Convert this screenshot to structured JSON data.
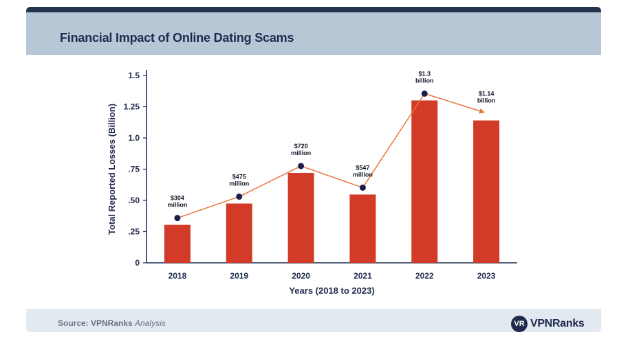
{
  "header": {
    "title": "Financial Impact of Online Dating Scams"
  },
  "footer": {
    "source_prefix": "Source: VPNRanks",
    "source_suffix": "Analysis",
    "logo_mark": "VR",
    "logo_text": "VPNRanks"
  },
  "colors": {
    "header_bg": "#b8c7d6",
    "topbar": "#24344e",
    "bar": "#d13b27",
    "line": "#e8743c",
    "marker": "#1a1f4d",
    "footer_bg": "#e3e9f0"
  },
  "chart_data": {
    "type": "bar",
    "categories": [
      "2018",
      "2019",
      "2020",
      "2021",
      "2022",
      "2023"
    ],
    "values": [
      0.304,
      0.475,
      0.72,
      0.547,
      1.3,
      1.14
    ],
    "data_labels": [
      [
        "$304",
        "million"
      ],
      [
        "$475",
        "million"
      ],
      [
        "$720",
        "million"
      ],
      [
        "$547",
        "million"
      ],
      [
        "$1.3",
        "billion"
      ],
      [
        "$1.14",
        "billion"
      ]
    ],
    "overlay": {
      "type": "line",
      "values": [
        0.304,
        0.475,
        0.72,
        0.547,
        1.3,
        1.14
      ],
      "arrow_at_end": true
    },
    "yticks": [
      {
        "value": 0,
        "label": "0"
      },
      {
        "value": 0.25,
        "label": ".25"
      },
      {
        "value": 0.5,
        "label": ".50"
      },
      {
        "value": 0.75,
        "label": ".75"
      },
      {
        "value": 1.0,
        "label": "1.0"
      },
      {
        "value": 1.25,
        "label": "1.25"
      },
      {
        "value": 1.5,
        "label": "1.5"
      }
    ],
    "ylim": [
      0,
      1.5
    ],
    "xlabel": "Years (2018 to 2023)",
    "ylabel": "Total Reported Losses (Billion)",
    "grid": false,
    "legend": "none"
  }
}
